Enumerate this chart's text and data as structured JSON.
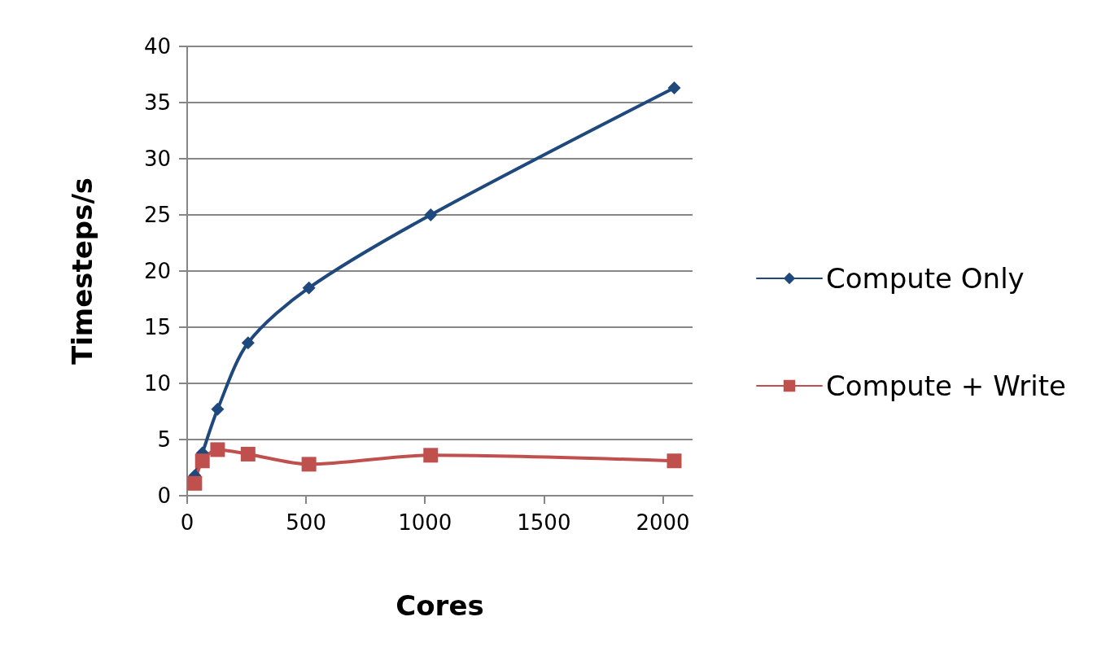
{
  "chart_data": {
    "type": "line",
    "xlabel": "Cores",
    "ylabel": "Timesteps/s",
    "x": [
      32,
      64,
      128,
      256,
      512,
      1024,
      2048
    ],
    "series": [
      {
        "name": "Compute Only",
        "color": "#1f497d",
        "marker": "diamond",
        "values": [
          1.8,
          3.8,
          7.7,
          13.6,
          18.5,
          25.0,
          36.3
        ]
      },
      {
        "name": "Compute + Write",
        "color": "#c0504d",
        "marker": "square",
        "values": [
          1.1,
          3.1,
          4.1,
          3.7,
          2.8,
          3.6,
          3.1
        ]
      }
    ],
    "xlim": [
      0,
      2125
    ],
    "xticks": [
      0,
      500,
      1000,
      1500,
      2000
    ],
    "ylim": [
      0,
      40
    ],
    "yticks": [
      0,
      5,
      10,
      15,
      20,
      25,
      30,
      35,
      40
    ],
    "grid": "y",
    "legend": "right"
  }
}
